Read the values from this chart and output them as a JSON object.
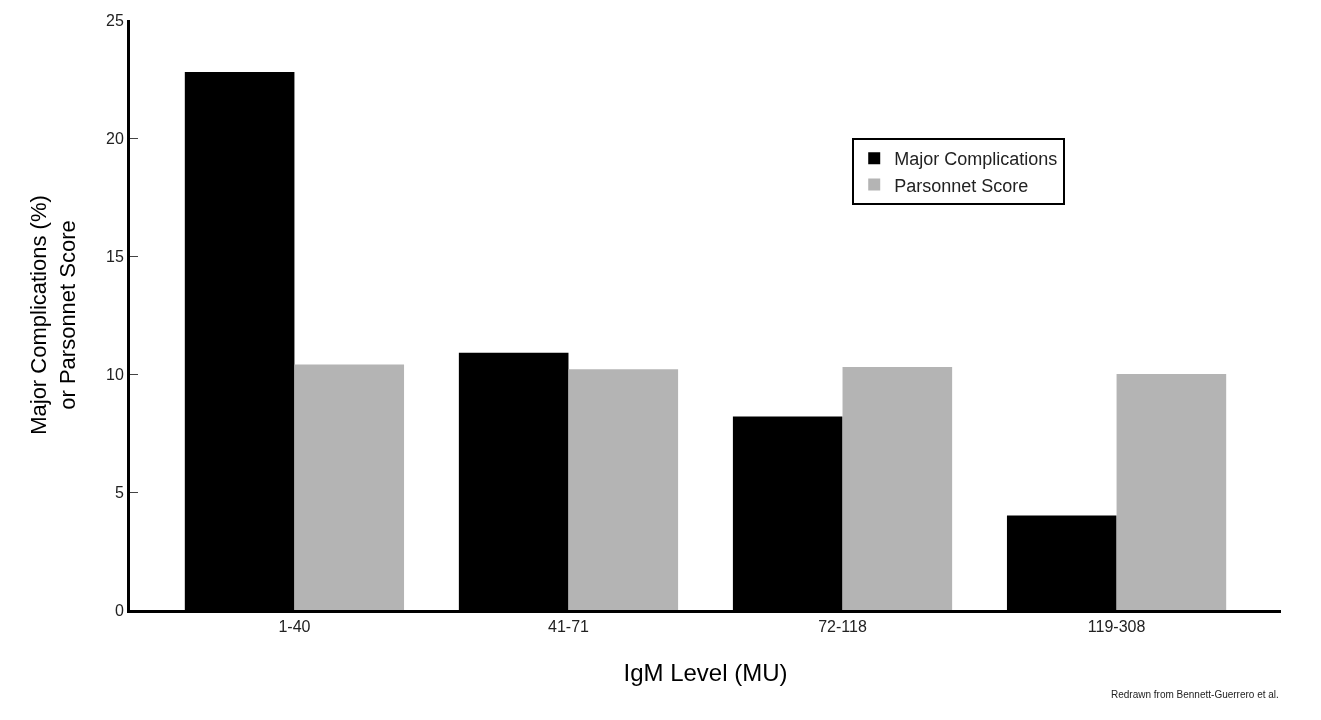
{
  "chart_data": {
    "type": "bar",
    "xlabel": "IgM Level (MU)",
    "ylabel": "Major Complications (%)\nor Parsonnet Score",
    "categories": [
      "1-40",
      "41-71",
      "72-118",
      "119-308"
    ],
    "series": [
      {
        "name": "Major Complications",
        "color": "#000000",
        "values": [
          22.8,
          10.9,
          8.2,
          4.0
        ]
      },
      {
        "name": "Parsonnet Score",
        "color": "#b4b4b4",
        "values": [
          10.4,
          10.2,
          10.3,
          10.0
        ]
      }
    ],
    "ylim": [
      0,
      25
    ],
    "yticks": [
      0,
      5,
      10,
      15,
      20,
      25
    ],
    "legend": "top right",
    "annotations": [
      "Redrawn from Bennett-Guerrero et al."
    ]
  }
}
